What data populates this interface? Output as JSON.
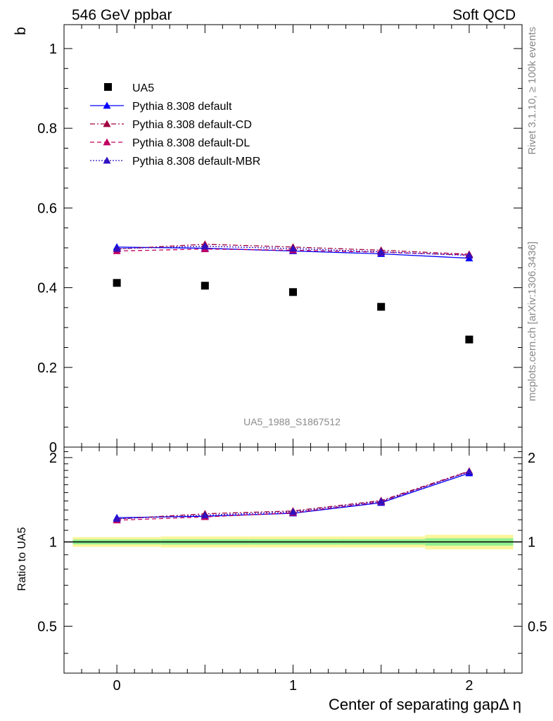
{
  "header": {
    "left": "546 GeV ppbar",
    "right": "Soft QCD"
  },
  "side_labels": {
    "rivet": "Rivet 3.1.10, ≥ 100k events",
    "mcplots": "mcplots.cern.ch [arXiv:1306.3436]"
  },
  "watermark": "UA5_1988_S1867512",
  "chart_data": [
    {
      "type": "scatter",
      "ylabel": "b",
      "xlabel": "Center of separating gapΔ η",
      "xlim": [
        -0.3,
        2.3
      ],
      "ylim": [
        0,
        1.06
      ],
      "yticks": [
        "0",
        "0.2",
        "0.4",
        "0.6",
        "0.8",
        "1"
      ],
      "legend_position": "top-left",
      "x": [
        0,
        0.5,
        1,
        1.5,
        2
      ],
      "series": [
        {
          "name": "UA5",
          "style": "square-marker",
          "color": "#000000",
          "values": [
            0.412,
            0.405,
            0.389,
            0.352,
            0.27
          ]
        },
        {
          "name": "Pythia 8.308 default",
          "style": "solid",
          "color": "#0000ff",
          "values": [
            0.502,
            0.499,
            0.492,
            0.485,
            0.474
          ]
        },
        {
          "name": "Pythia 8.308 default-CD",
          "style": "dashdot",
          "color": "#a00040",
          "values": [
            0.497,
            0.509,
            0.502,
            0.494,
            0.484
          ]
        },
        {
          "name": "Pythia 8.308 default-DL",
          "style": "dashed",
          "color": "#c00060",
          "values": [
            0.492,
            0.497,
            0.494,
            0.489,
            0.482
          ]
        },
        {
          "name": "Pythia 8.308 default-MBR",
          "style": "dotted",
          "color": "#3010c0",
          "values": [
            0.498,
            0.504,
            0.498,
            0.49,
            0.481
          ]
        }
      ]
    },
    {
      "type": "line",
      "ylabel": "Ratio to UA5",
      "xlabel": "Center of separating gapΔ η",
      "xlim": [
        -0.3,
        2.3
      ],
      "ylim": [
        0.34,
        2.18
      ],
      "yticks": [
        "0.5",
        "1",
        "2"
      ],
      "xticks": [
        "0",
        "1",
        "2"
      ],
      "x": [
        0,
        0.5,
        1,
        1.5,
        2
      ],
      "bands": {
        "yellow": [
          0.04,
          0.045,
          0.045,
          0.045,
          0.06
        ],
        "green": [
          0.02,
          0.022,
          0.022,
          0.022,
          0.03
        ]
      },
      "series": [
        {
          "name": "Pythia 8.308 default",
          "style": "solid",
          "color": "#0000ff",
          "values": [
            1.22,
            1.235,
            1.265,
            1.38,
            1.76
          ]
        },
        {
          "name": "Pythia 8.308 default-CD",
          "style": "dashdot",
          "color": "#a00040",
          "values": [
            1.207,
            1.26,
            1.29,
            1.405,
            1.79
          ]
        },
        {
          "name": "Pythia 8.308 default-DL",
          "style": "dashed",
          "color": "#c00060",
          "values": [
            1.195,
            1.228,
            1.27,
            1.39,
            1.785
          ]
        },
        {
          "name": "Pythia 8.308 default-MBR",
          "style": "dotted",
          "color": "#3010c0",
          "values": [
            1.21,
            1.245,
            1.28,
            1.395,
            1.78
          ]
        }
      ]
    }
  ]
}
